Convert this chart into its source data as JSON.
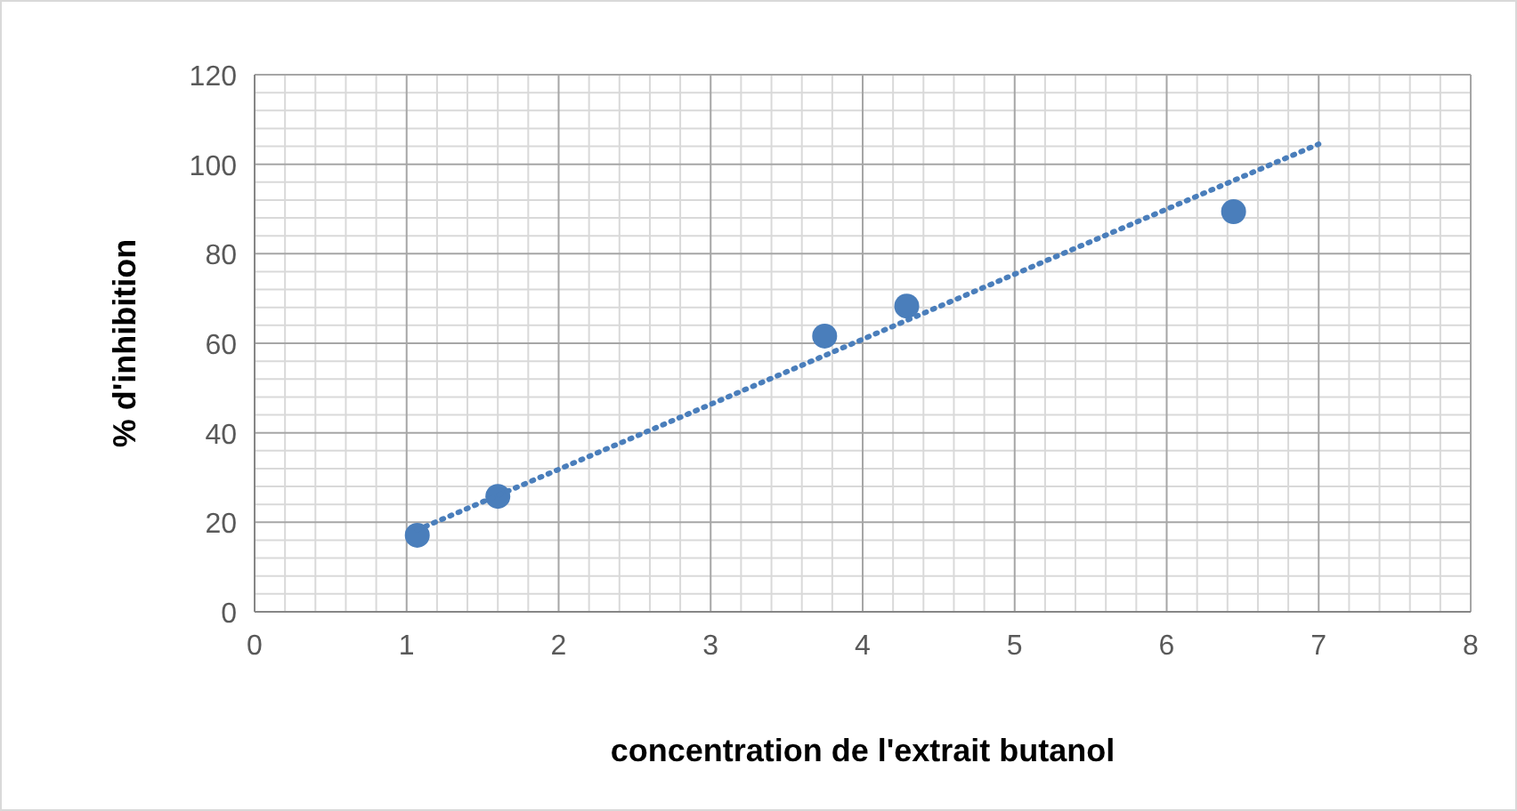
{
  "chart_data": {
    "type": "scatter",
    "xlabel": "concentration de l'extrait butanol",
    "ylabel": "%  d'inhibition",
    "xlim": [
      0,
      8
    ],
    "xticks": [
      0,
      1,
      2,
      3,
      4,
      5,
      6,
      7,
      8
    ],
    "ylim": [
      0,
      120
    ],
    "yticks": [
      0,
      20,
      40,
      60,
      80,
      100,
      120
    ],
    "grid": true,
    "series": [
      {
        "type": "scatter",
        "marker": "circle",
        "color": "#4a7ebb",
        "x": [
          1.07,
          1.6,
          3.75,
          4.29,
          6.44
        ],
        "values": [
          17.1,
          25.8,
          61.6,
          68.3,
          89.4
        ]
      },
      {
        "type": "line",
        "color": "#4a7ebb",
        "line_style": "dotted",
        "x": [
          1.07,
          7
        ],
        "values": [
          18.3,
          104.5
        ]
      }
    ]
  }
}
